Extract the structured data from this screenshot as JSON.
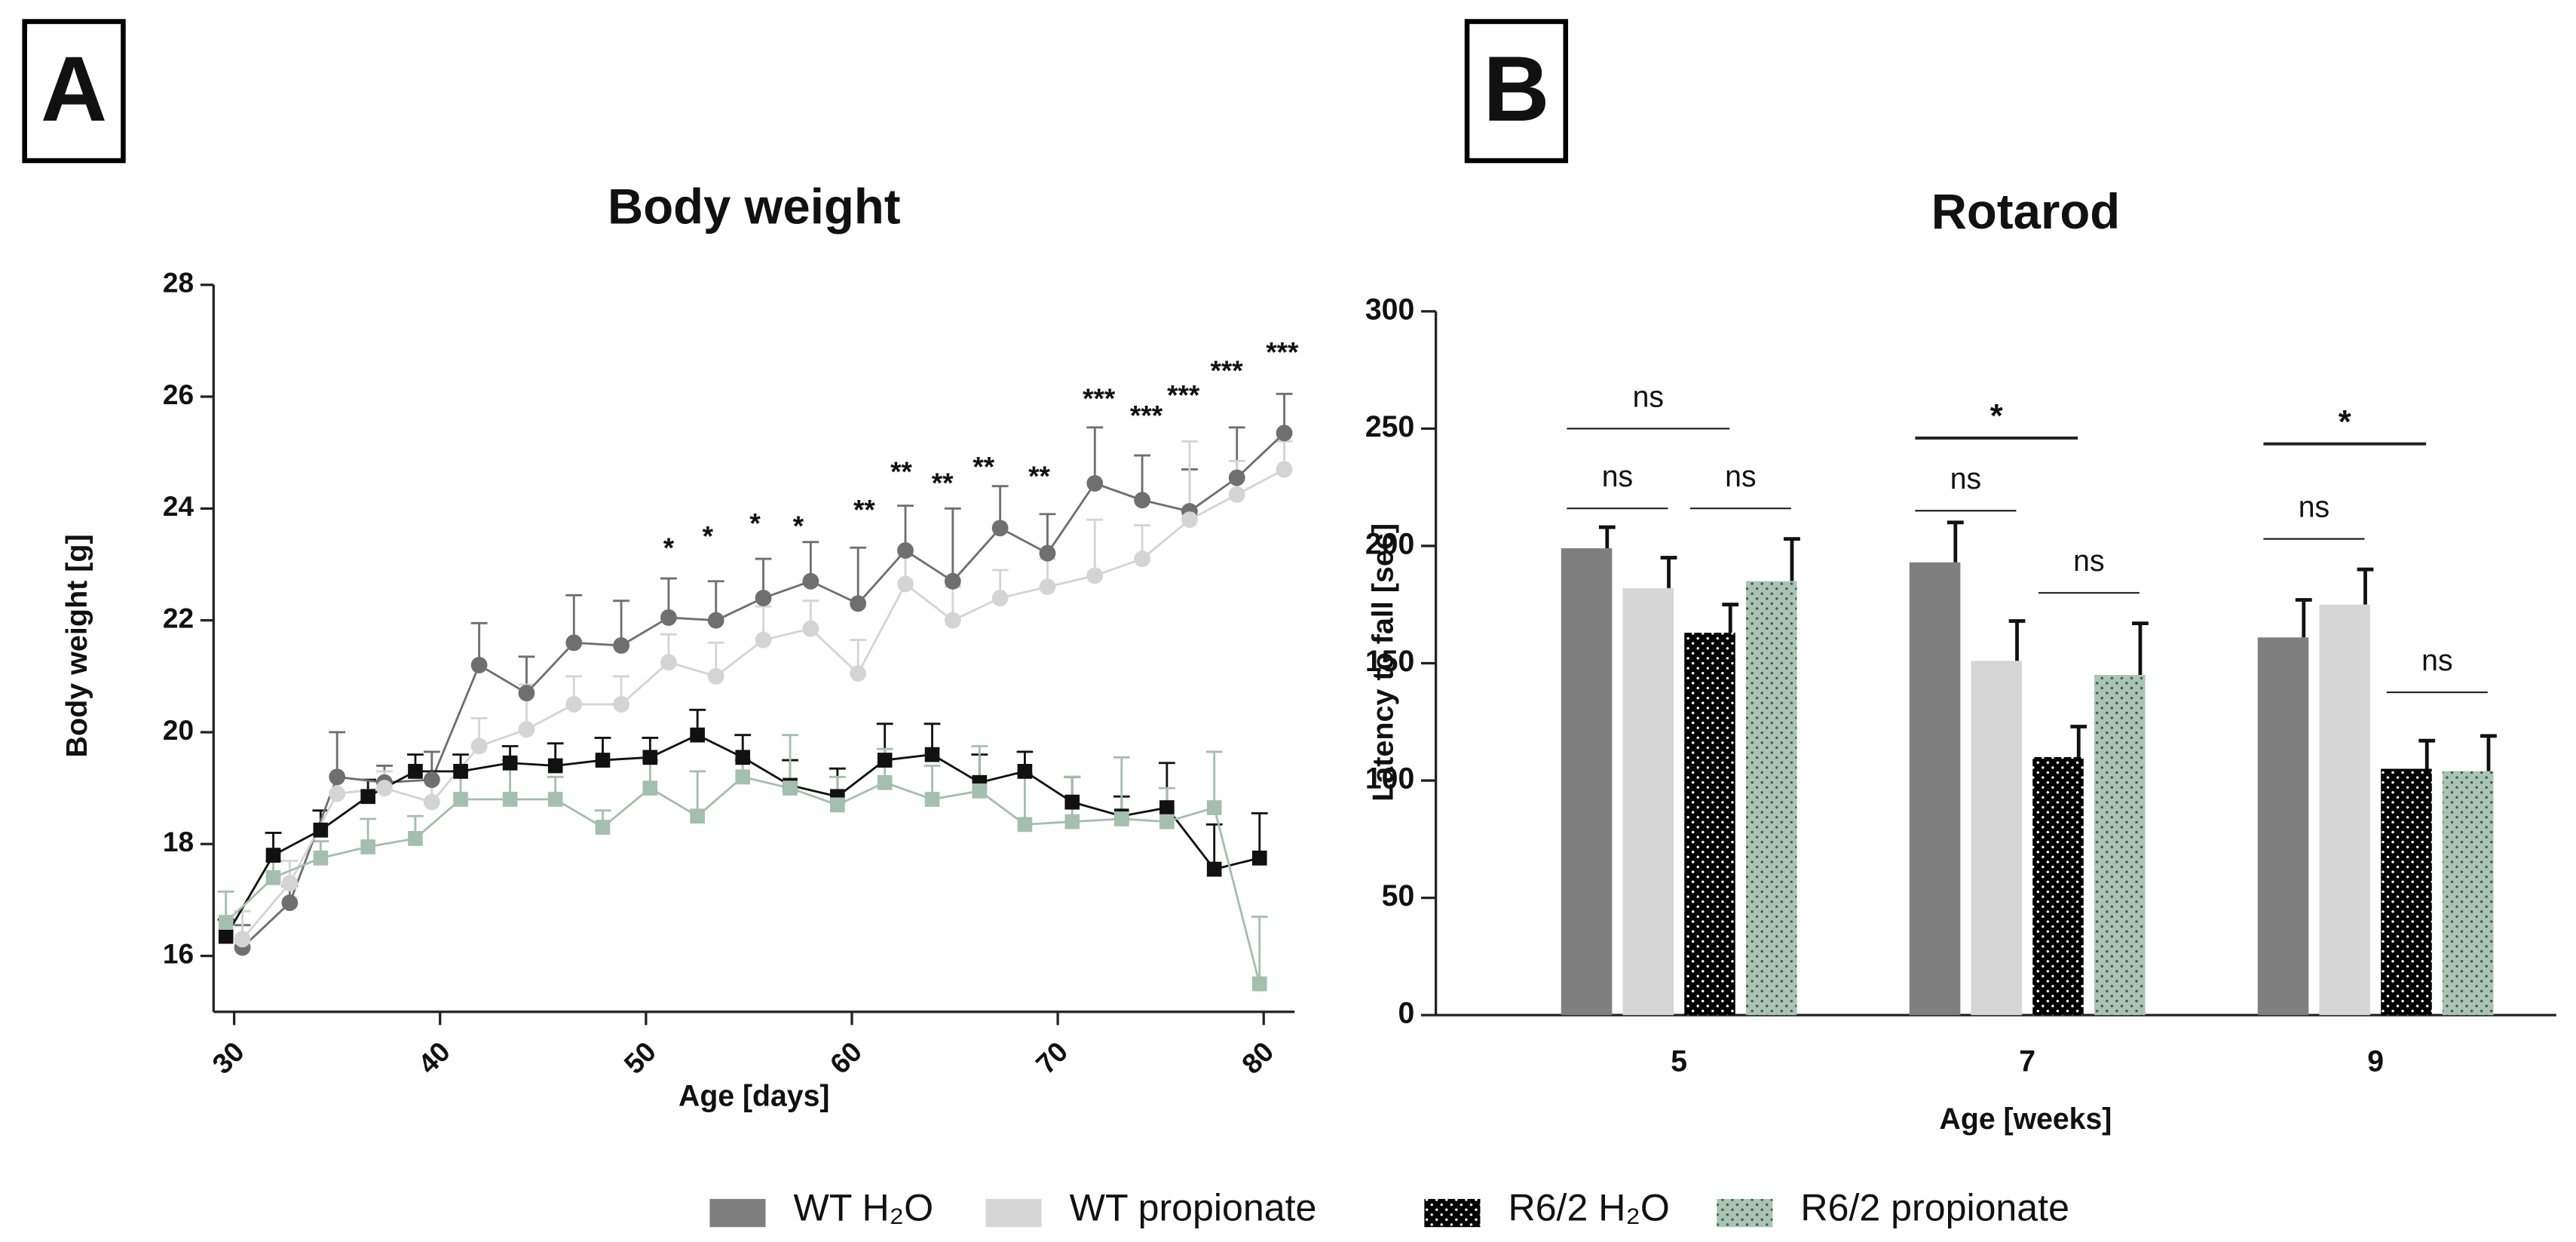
{
  "chart_data": [
    {
      "type": "line",
      "panel": "A",
      "title": "Body weight",
      "x_label": "Age [days]",
      "y_label": "Body weight [g]",
      "xlim": [
        29,
        81.5
      ],
      "xticks": [
        30,
        40,
        50,
        60,
        70,
        80
      ],
      "ylim": [
        15,
        28
      ],
      "yticks": [
        16,
        18,
        20,
        22,
        24,
        26,
        28
      ],
      "series": [
        {
          "color": "#6f6f6f",
          "marker": "circle",
          "x": [
            30.4,
            32.7,
            35.0,
            37.3,
            39.6,
            41.9,
            44.2,
            46.5,
            48.8,
            51.1,
            53.4,
            55.7,
            58.0,
            60.3,
            62.6,
            64.9,
            67.2,
            69.5,
            71.8,
            74.1,
            76.4,
            78.7,
            81.0
          ],
          "values": [
            16.15,
            16.95,
            19.2,
            19.1,
            19.15,
            21.2,
            20.7,
            21.6,
            21.55,
            22.05,
            22.0,
            22.4,
            22.7,
            22.3,
            23.25,
            22.7,
            23.65,
            23.2,
            24.45,
            24.15,
            23.95,
            24.55,
            25.35
          ],
          "errors": [
            0.4,
            0.3,
            0.8,
            0.3,
            0.5,
            0.75,
            0.65,
            0.85,
            0.8,
            0.7,
            0.7,
            0.7,
            0.7,
            1.0,
            0.8,
            1.3,
            0.75,
            0.7,
            1.0,
            0.8,
            0.75,
            0.9,
            0.7
          ]
        },
        {
          "color": "#d4d4d4",
          "marker": "circle",
          "x": [
            30.4,
            32.7,
            35.0,
            37.3,
            39.6,
            41.9,
            44.2,
            46.5,
            48.8,
            51.1,
            53.4,
            55.7,
            58.0,
            60.3,
            62.6,
            64.9,
            67.2,
            69.5,
            71.8,
            74.1,
            76.4,
            78.7,
            81.0
          ],
          "values": [
            16.3,
            17.3,
            18.9,
            19.0,
            18.75,
            19.75,
            20.05,
            20.5,
            20.5,
            21.25,
            21.0,
            21.65,
            21.85,
            21.05,
            22.65,
            22.0,
            22.4,
            22.6,
            22.8,
            23.1,
            23.8,
            24.25,
            24.7
          ],
          "errors": [
            0.5,
            0.4,
            0.3,
            0.3,
            0.4,
            0.5,
            0.8,
            0.5,
            0.5,
            0.5,
            0.6,
            0.6,
            0.5,
            0.6,
            0.5,
            0.6,
            0.5,
            0.5,
            1.0,
            0.6,
            1.4,
            0.6,
            0.5
          ]
        },
        {
          "color": "#111111",
          "marker": "square",
          "x": [
            29.6,
            31.9,
            34.2,
            36.5,
            38.8,
            41.0,
            43.4,
            45.6,
            47.9,
            50.2,
            52.5,
            54.7,
            57.0,
            59.3,
            61.6,
            63.9,
            66.2,
            68.4,
            70.7,
            73.1,
            75.3,
            77.6,
            79.8
          ],
          "values": [
            16.35,
            17.8,
            18.25,
            18.85,
            19.3,
            19.3,
            19.45,
            19.4,
            19.5,
            19.55,
            19.95,
            19.55,
            19.05,
            18.85,
            19.5,
            19.6,
            19.1,
            19.3,
            18.75,
            18.5,
            18.65,
            17.55,
            17.75
          ],
          "errors": [
            0.3,
            0.4,
            0.35,
            0.3,
            0.3,
            0.3,
            0.3,
            0.4,
            0.4,
            0.35,
            0.45,
            0.4,
            0.45,
            0.5,
            0.65,
            0.55,
            0.5,
            0.35,
            0.45,
            0.35,
            0.8,
            0.8,
            0.8
          ]
        },
        {
          "color": "#a3bfae",
          "marker": "square",
          "x": [
            29.6,
            31.9,
            34.2,
            36.5,
            38.8,
            41.0,
            43.4,
            45.6,
            47.9,
            50.2,
            52.5,
            54.7,
            57.0,
            59.3,
            61.6,
            63.9,
            66.2,
            68.4,
            70.7,
            73.1,
            75.3,
            77.6,
            79.8
          ],
          "values": [
            16.6,
            17.4,
            17.75,
            17.95,
            18.1,
            18.8,
            18.8,
            18.8,
            18.3,
            19.0,
            18.5,
            19.2,
            19.0,
            18.7,
            19.1,
            18.8,
            18.95,
            18.35,
            18.4,
            18.45,
            18.4,
            18.65,
            15.5
          ],
          "errors": [
            0.55,
            0.3,
            0.3,
            0.5,
            0.4,
            0.5,
            0.7,
            0.4,
            0.3,
            0.5,
            0.8,
            0.3,
            0.95,
            0.5,
            0.6,
            0.6,
            0.8,
            0.9,
            0.8,
            1.1,
            0.6,
            1.0,
            1.2
          ]
        }
      ],
      "annotations": [
        {
          "label": "*",
          "x": 51.1,
          "y": 23.26
        },
        {
          "label": "*",
          "x": 53.0,
          "y": 23.47
        },
        {
          "label": "*",
          "x": 55.3,
          "y": 23.7
        },
        {
          "label": "*",
          "x": 57.4,
          "y": 23.65
        },
        {
          "label": "**",
          "x": 60.6,
          "y": 23.94
        },
        {
          "label": "**",
          "x": 62.4,
          "y": 24.62
        },
        {
          "label": "**",
          "x": 64.4,
          "y": 24.42
        },
        {
          "label": "**",
          "x": 66.4,
          "y": 24.71
        },
        {
          "label": "**",
          "x": 69.1,
          "y": 24.54
        },
        {
          "label": "***",
          "x": 72.0,
          "y": 25.93
        },
        {
          "label": "***",
          "x": 74.3,
          "y": 25.63
        },
        {
          "label": "***",
          "x": 76.1,
          "y": 25.99
        },
        {
          "label": "***",
          "x": 78.2,
          "y": 26.43
        },
        {
          "label": "***",
          "x": 80.9,
          "y": 26.76
        }
      ]
    },
    {
      "type": "bar",
      "panel": "B",
      "title": "Rotarod",
      "x_label": "Age [weeks]",
      "y_label": "Latency to fall [sec]",
      "categories": [
        "5",
        "7",
        "9"
      ],
      "ylim": [
        0,
        300
      ],
      "yticks": [
        0,
        50,
        100,
        150,
        200,
        250,
        300
      ],
      "legend": "bottom",
      "series": [
        {
          "name": "WT H₂O",
          "color": "#7f7f7f",
          "values": [
            199,
            193,
            161
          ],
          "errors": [
            9,
            17,
            16
          ]
        },
        {
          "name": "WT propionate",
          "color": "#d6d6d6",
          "values": [
            182,
            151,
            175
          ],
          "errors": [
            13,
            17,
            15
          ]
        },
        {
          "name": "R6/2 H₂O",
          "color": "#000000",
          "pattern": "dots",
          "dot_color": "#ffffff",
          "values": [
            163,
            110,
            105
          ],
          "errors": [
            12,
            13,
            12
          ]
        },
        {
          "name": "R6/2 propionate",
          "color": "#a9c4b3",
          "pattern": "dots",
          "dot_color": "#3d5a48",
          "values": [
            185,
            145,
            104
          ],
          "errors": [
            18,
            22,
            15
          ]
        }
      ],
      "comparisons": [
        {
          "category": 0,
          "from": 0,
          "to": 1,
          "y": 216,
          "label": "ns"
        },
        {
          "category": 0,
          "from": 2,
          "to": 3,
          "y": 216,
          "label": "ns"
        },
        {
          "category": 0,
          "from": 0,
          "to": 2,
          "y": 250,
          "label": "ns"
        },
        {
          "category": 1,
          "from": 0,
          "to": 2,
          "y": 246,
          "label": "*"
        },
        {
          "category": 1,
          "from": 0,
          "to": 1,
          "y": 215,
          "label": "ns"
        },
        {
          "category": 1,
          "from": 2,
          "to": 3,
          "y": 180,
          "label": "ns"
        },
        {
          "category": 2,
          "from": 0,
          "to": 2,
          "y": 243.5,
          "label": "*"
        },
        {
          "category": 2,
          "from": 0,
          "to": 1,
          "y": 203,
          "label": "ns"
        },
        {
          "category": 2,
          "from": 2,
          "to": 3,
          "y": 137.6,
          "label": "ns"
        }
      ]
    }
  ]
}
